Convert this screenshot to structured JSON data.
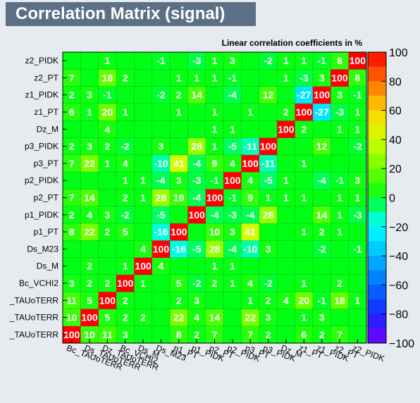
{
  "title": "Correlation Matrix (signal)",
  "chart_data": {
    "type": "heatmap",
    "subtitle": "Linear correlation coefficients in %",
    "variables": [
      "Bc_TAUoTERR",
      "Ds_TAUoTERR",
      "Dz_TAUoTERR",
      "Bc_VCHI2",
      "Ds_M",
      "Ds_M23",
      "p1_PT",
      "p1_PIDK",
      "p2_PT",
      "p2_PIDK",
      "p3_PT",
      "p3_PIDK",
      "Dz_M",
      "z1_PT",
      "z1_PIDK",
      "z2_PT",
      "z2_PIDK"
    ],
    "y_labels": [
      "Bc_TAUoTERR",
      "Ds_TAUoTERR",
      "Dz_TAUoTERR",
      "Bc_VCHI2",
      "Ds_M",
      "Ds_M23",
      "p1_PT",
      "p1_PIDK",
      "p2_PT",
      "p2_PIDK",
      "p3_PT",
      "p3_PIDK",
      "Dz_M",
      "z1_PT",
      "z1_PIDK",
      "z2_PT",
      "z2_PIDK"
    ],
    "y_labels_display": [
      "_TAUoTERR",
      "_TAUoTERR",
      "_TAUoTERR",
      "Bc_VCHI2",
      "Ds_M",
      "Ds_M23",
      "p1_PT",
      "p1_PIDK",
      "p2_PT",
      "p2_PIDK",
      "p3_PT",
      "p3_PIDK",
      "Dz_M",
      "z1_PT",
      "z1_PIDK",
      "z2_PT",
      "z2_PIDK"
    ],
    "x_labels_display": [
      "Bc_TAUoTERR",
      "Ds_TAUoTERR",
      "Dz_TAUoTERR",
      "Bc_VCHI2",
      "Ds_M",
      "Ds_M23",
      "p1_PT",
      "p1_PIDK",
      "p2_PT",
      "p2_PIDK",
      "p3_PT",
      "p3_PIDK",
      "Dz_M",
      "z1_PT",
      "z1_PIDK",
      "z2_PT",
      "z2_PIDK"
    ],
    "matrix": [
      [
        100,
        10,
        11,
        3,
        0,
        0,
        8,
        2,
        7,
        0,
        7,
        2,
        0,
        6,
        2,
        7,
        0
      ],
      [
        10,
        100,
        5,
        2,
        2,
        0,
        22,
        4,
        14,
        0,
        22,
        3,
        0,
        1,
        3,
        0,
        0
      ],
      [
        11,
        5,
        100,
        2,
        0,
        0,
        2,
        3,
        0,
        0,
        1,
        2,
        4,
        20,
        -1,
        18,
        1
      ],
      [
        3,
        2,
        2,
        100,
        1,
        0,
        5,
        -2,
        2,
        1,
        4,
        -2,
        0,
        1,
        0,
        2,
        0
      ],
      [
        0,
        2,
        0,
        1,
        100,
        4,
        0,
        0,
        1,
        1,
        0,
        0,
        0,
        0,
        0,
        0,
        0
      ],
      [
        0,
        0,
        0,
        0,
        4,
        100,
        -16,
        -5,
        28,
        -4,
        -10,
        3,
        0,
        0,
        -2,
        0,
        -1
      ],
      [
        8,
        22,
        2,
        5,
        0,
        -16,
        100,
        0,
        10,
        3,
        41,
        0,
        0,
        1,
        2,
        1,
        0
      ],
      [
        2,
        4,
        3,
        -2,
        0,
        -5,
        0,
        100,
        -4,
        -3,
        -4,
        28,
        0,
        0,
        14,
        1,
        -3
      ],
      [
        7,
        14,
        0,
        2,
        1,
        28,
        10,
        -4,
        100,
        -1,
        9,
        1,
        1,
        1,
        0,
        1,
        1
      ],
      [
        0,
        0,
        0,
        1,
        1,
        -4,
        3,
        -3,
        -1,
        100,
        4,
        -5,
        1,
        0,
        -4,
        -1,
        3
      ],
      [
        7,
        22,
        1,
        4,
        0,
        -10,
        41,
        -4,
        9,
        4,
        100,
        -11,
        0,
        1,
        0,
        0,
        0
      ],
      [
        2,
        3,
        2,
        -2,
        0,
        3,
        0,
        28,
        1,
        -5,
        -11,
        100,
        0,
        0,
        12,
        0,
        -2
      ],
      [
        0,
        0,
        4,
        0,
        0,
        0,
        0,
        0,
        1,
        1,
        0,
        0,
        100,
        2,
        0,
        1,
        1
      ],
      [
        6,
        1,
        20,
        1,
        0,
        0,
        1,
        0,
        1,
        0,
        1,
        0,
        2,
        100,
        -27,
        -3,
        1
      ],
      [
        2,
        3,
        -1,
        0,
        0,
        -2,
        2,
        14,
        0,
        -4,
        0,
        12,
        0,
        -27,
        100,
        3,
        -1
      ],
      [
        7,
        0,
        18,
        2,
        0,
        0,
        1,
        1,
        1,
        -1,
        0,
        0,
        1,
        -3,
        3,
        100,
        8
      ],
      [
        0,
        0,
        1,
        0,
        0,
        -1,
        0,
        -3,
        1,
        3,
        0,
        -2,
        1,
        1,
        -1,
        8,
        100
      ]
    ],
    "zlim": [
      -100,
      100
    ],
    "colorbar_ticks": [
      "100",
      "80",
      "60",
      "40",
      "20",
      "0",
      "−20",
      "−40",
      "−60",
      "−80",
      "−100"
    ],
    "grid": true
  }
}
